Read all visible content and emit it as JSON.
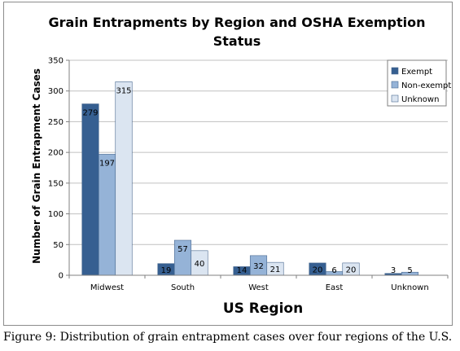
{
  "chart_data": {
    "type": "bar",
    "title_lines": [
      "Grain Entrapments by Region and OSHA Exemption",
      "Status"
    ],
    "xlabel": "US Region",
    "ylabel": "Number of Grain Entrapment Cases",
    "categories": [
      "Midwest",
      "South",
      "West",
      "East",
      "Unknown"
    ],
    "ylim": [
      0,
      350
    ],
    "yticks": [
      0,
      50,
      100,
      150,
      200,
      250,
      300,
      350
    ],
    "grid": true,
    "legend_position": "top-right",
    "series": [
      {
        "name": "Exempt",
        "color": "#365f91",
        "values": [
          279,
          19,
          14,
          20,
          3
        ]
      },
      {
        "name": "Non-exempt",
        "color": "#95b3d7",
        "values": [
          197,
          57,
          32,
          6,
          5
        ]
      },
      {
        "name": "Unknown",
        "color": "#dbe5f1",
        "values": [
          315,
          40,
          21,
          20,
          null
        ]
      }
    ],
    "data_labels": [
      [
        "279",
        "19",
        "14",
        "20",
        "3"
      ],
      [
        "197",
        "57",
        "32",
        "6",
        "5"
      ],
      [
        "315",
        "40",
        "21",
        "20",
        ""
      ]
    ]
  },
  "caption": "Figure 9: Distribution of grain entrapment cases over four regions of the U.S."
}
